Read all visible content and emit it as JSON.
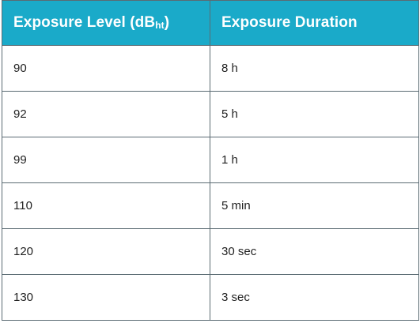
{
  "header": {
    "col1_prefix": "Exposure Level (dB",
    "col1_sub": "ht",
    "col1_suffix": ")",
    "col2": "Exposure Duration"
  },
  "rows": [
    {
      "level": "90",
      "duration": "8 h"
    },
    {
      "level": "92",
      "duration": "5 h"
    },
    {
      "level": "99",
      "duration": "1 h"
    },
    {
      "level": "110",
      "duration": "5 min"
    },
    {
      "level": "120",
      "duration": "30 sec"
    },
    {
      "level": "130",
      "duration": "3 sec"
    }
  ],
  "colors": {
    "header_bg": "#1aaac9",
    "header_text": "#ffffff",
    "border": "#5b6b73"
  }
}
